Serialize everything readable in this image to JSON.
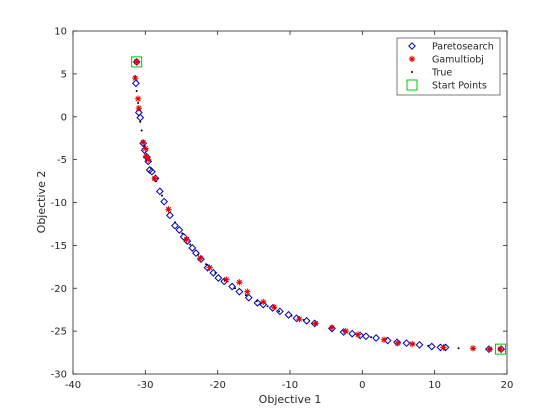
{
  "chart_data": {
    "type": "scatter",
    "title": "",
    "xlabel": "Objective 1",
    "ylabel": "Objective 2",
    "xlim": [
      -40,
      20
    ],
    "ylim": [
      -30,
      10
    ],
    "xticks": [
      -40,
      -30,
      -20,
      -10,
      0,
      10,
      20
    ],
    "yticks": [
      -30,
      -25,
      -20,
      -15,
      -10,
      -5,
      0,
      5,
      10
    ],
    "grid": false,
    "legend_position": "top-right",
    "series": [
      {
        "name": "Paretosearch",
        "marker": "diamond",
        "color": "#0000b4",
        "points": [
          [
            -31.2,
            6.4
          ],
          [
            -31.3,
            3.9
          ],
          [
            -30.9,
            0.5
          ],
          [
            -30.7,
            -0.1
          ],
          [
            -30.3,
            -3.1
          ],
          [
            -30.1,
            -3.9
          ],
          [
            -29.8,
            -4.7
          ],
          [
            -29.6,
            -5.2
          ],
          [
            -29.4,
            -6.2
          ],
          [
            -29.1,
            -6.4
          ],
          [
            -28.6,
            -7.2
          ],
          [
            -28.0,
            -8.7
          ],
          [
            -27.4,
            -9.9
          ],
          [
            -26.6,
            -11.5
          ],
          [
            -25.9,
            -12.7
          ],
          [
            -25.3,
            -13.2
          ],
          [
            -24.7,
            -14.0
          ],
          [
            -24.2,
            -14.5
          ],
          [
            -23.5,
            -15.3
          ],
          [
            -23.0,
            -15.9
          ],
          [
            -22.3,
            -16.6
          ],
          [
            -21.4,
            -17.6
          ],
          [
            -20.6,
            -18.2
          ],
          [
            -19.9,
            -18.8
          ],
          [
            -19.1,
            -19.2
          ],
          [
            -18.0,
            -19.8
          ],
          [
            -17.0,
            -20.4
          ],
          [
            -15.7,
            -21.1
          ],
          [
            -14.5,
            -21.7
          ],
          [
            -13.7,
            -21.9
          ],
          [
            -12.4,
            -22.3
          ],
          [
            -11.4,
            -22.7
          ],
          [
            -10.2,
            -23.1
          ],
          [
            -9.1,
            -23.5
          ],
          [
            -7.7,
            -23.8
          ],
          [
            -6.6,
            -24.1
          ],
          [
            -4.2,
            -24.7
          ],
          [
            -2.6,
            -25.1
          ],
          [
            -1.4,
            -25.3
          ],
          [
            -0.3,
            -25.5
          ],
          [
            0.5,
            -25.6
          ],
          [
            1.9,
            -25.8
          ],
          [
            3.5,
            -26.1
          ],
          [
            4.8,
            -26.3
          ],
          [
            6.1,
            -26.4
          ],
          [
            7.9,
            -26.6
          ],
          [
            9.6,
            -26.8
          ],
          [
            10.8,
            -26.9
          ],
          [
            11.5,
            -26.9
          ],
          [
            17.5,
            -27.1
          ],
          [
            19.2,
            -27.1
          ]
        ]
      },
      {
        "name": "Gamultiobj",
        "marker": "asterisk",
        "color": "#e00000",
        "points": [
          [
            -31.2,
            6.4
          ],
          [
            -31.4,
            4.5
          ],
          [
            -31.0,
            2.1
          ],
          [
            -30.9,
            1.0
          ],
          [
            -30.3,
            -3.0
          ],
          [
            -30.0,
            -3.7
          ],
          [
            -29.9,
            -4.6
          ],
          [
            -29.6,
            -5.0
          ],
          [
            -28.7,
            -7.2
          ],
          [
            -26.8,
            -10.8
          ],
          [
            -24.3,
            -14.3
          ],
          [
            -22.4,
            -16.5
          ],
          [
            -21.1,
            -17.6
          ],
          [
            -18.8,
            -19.0
          ],
          [
            -17.0,
            -19.3
          ],
          [
            -15.9,
            -20.4
          ],
          [
            -13.7,
            -21.6
          ],
          [
            -12.2,
            -22.2
          ],
          [
            -8.7,
            -23.6
          ],
          [
            -6.5,
            -24.1
          ],
          [
            -4.2,
            -24.6
          ],
          [
            -2.3,
            -25.0
          ],
          [
            -0.6,
            -25.4
          ],
          [
            3.0,
            -26.0
          ],
          [
            4.9,
            -26.4
          ],
          [
            6.9,
            -26.5
          ],
          [
            11.2,
            -26.9
          ],
          [
            15.3,
            -27.0
          ],
          [
            17.6,
            -27.1
          ],
          [
            19.1,
            -27.1
          ]
        ]
      },
      {
        "name": "True",
        "marker": "dot",
        "color": "#000000",
        "points": [
          [
            -31.4,
            4.7
          ],
          [
            -31.2,
            3.0
          ],
          [
            -31.0,
            1.6
          ],
          [
            -30.7,
            -0.6
          ],
          [
            -30.5,
            -1.6
          ],
          [
            -30.1,
            -3.4
          ],
          [
            -29.7,
            -4.9
          ],
          [
            -29.2,
            -6.0
          ],
          [
            -28.5,
            -7.5
          ],
          [
            -27.7,
            -9.2
          ],
          [
            -26.9,
            -10.7
          ],
          [
            -25.9,
            -12.3
          ],
          [
            -24.9,
            -13.6
          ],
          [
            -23.8,
            -14.9
          ],
          [
            -22.7,
            -16.1
          ],
          [
            -21.6,
            -17.2
          ],
          [
            -20.3,
            -18.2
          ],
          [
            -19.0,
            -19.1
          ],
          [
            -17.6,
            -20.0
          ],
          [
            -16.1,
            -20.8
          ],
          [
            -14.6,
            -21.5
          ],
          [
            -13.1,
            -22.1
          ],
          [
            -11.5,
            -22.7
          ],
          [
            -9.8,
            -23.2
          ],
          [
            -8.1,
            -23.7
          ],
          [
            -6.3,
            -24.2
          ],
          [
            -4.5,
            -24.6
          ],
          [
            -2.6,
            -25.0
          ],
          [
            -0.7,
            -25.4
          ],
          [
            1.2,
            -25.7
          ],
          [
            3.1,
            -26.0
          ],
          [
            5.1,
            -26.3
          ],
          [
            7.1,
            -26.5
          ],
          [
            9.1,
            -26.7
          ],
          [
            11.2,
            -26.9
          ],
          [
            13.3,
            -27.0
          ],
          [
            15.4,
            -27.1
          ],
          [
            17.5,
            -27.1
          ]
        ]
      },
      {
        "name": "Start Points",
        "marker": "square",
        "color": "#00c800",
        "points": [
          [
            -31.2,
            6.4
          ],
          [
            19.1,
            -27.1
          ]
        ]
      }
    ]
  }
}
